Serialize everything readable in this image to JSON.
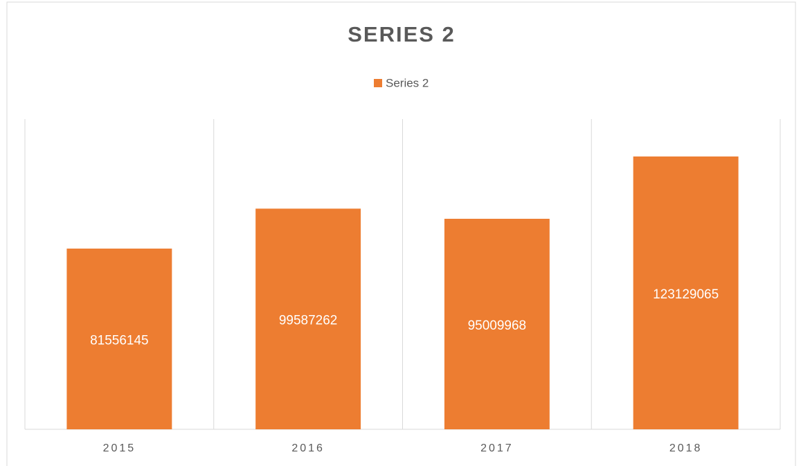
{
  "chart_data": {
    "type": "bar",
    "title": "SERIES 2",
    "categories": [
      "2015",
      "2016",
      "2017",
      "2018"
    ],
    "series": [
      {
        "name": "Series 2",
        "color": "#ed7d31",
        "values": [
          81556145,
          99587262,
          95009968,
          123129065
        ]
      }
    ],
    "ylim": [
      0,
      140000000
    ],
    "legend": "top"
  }
}
